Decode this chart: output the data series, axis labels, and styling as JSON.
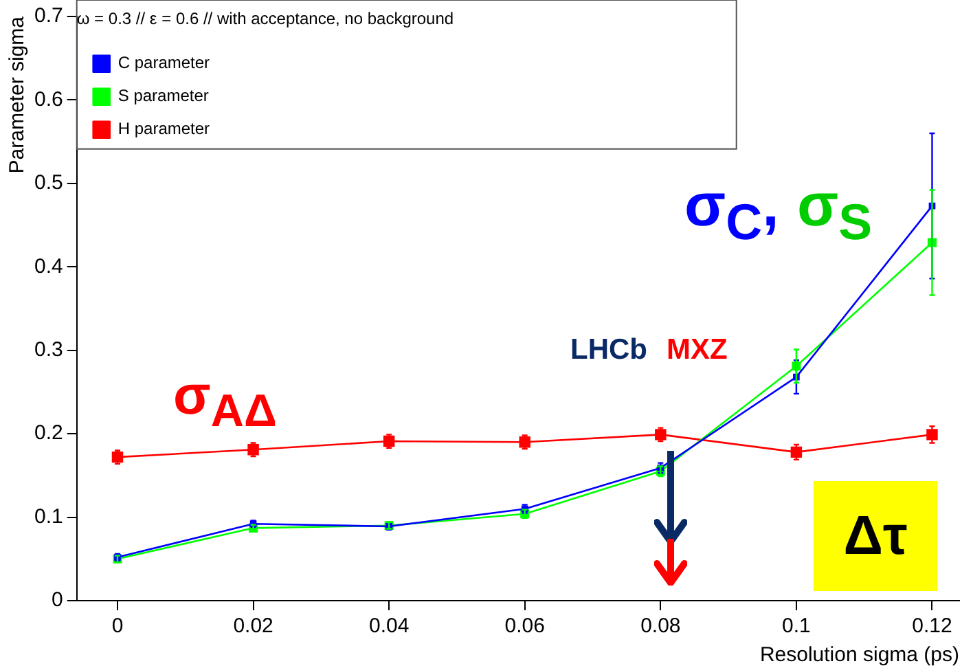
{
  "chart_data": {
    "type": "line",
    "xlabel": "Resolution sigma (ps)",
    "ylabel": "Parameter sigma",
    "legend_title": "ω = 0.3 // ε = 0.6 // with acceptance, no background",
    "x": [
      0,
      0.02,
      0.04,
      0.06,
      0.08,
      0.1,
      0.12
    ],
    "series": [
      {
        "name": "C parameter",
        "color": "#0000ff",
        "values": [
          0.052,
          0.092,
          0.089,
          0.11,
          0.159,
          0.268,
          0.473
        ],
        "errors": [
          0.004,
          0.004,
          0.004,
          0.005,
          0.006,
          0.02,
          0.087
        ]
      },
      {
        "name": "S parameter",
        "color": "#00ff00",
        "values": [
          0.05,
          0.087,
          0.09,
          0.104,
          0.155,
          0.281,
          0.429
        ],
        "errors": [
          0.004,
          0.004,
          0.004,
          0.005,
          0.006,
          0.02,
          0.063
        ]
      },
      {
        "name": "H parameter",
        "color": "#ff0000",
        "values": [
          0.172,
          0.181,
          0.191,
          0.19,
          0.199,
          0.178,
          0.199
        ],
        "errors": [
          0.008,
          0.008,
          0.008,
          0.008,
          0.008,
          0.009,
          0.01
        ]
      }
    ],
    "xlim": [
      -0.006,
      0.124
    ],
    "xticks": [
      0,
      0.02,
      0.04,
      0.06,
      0.08,
      0.1,
      0.12
    ],
    "ylim": [
      0,
      0.7
    ],
    "yticks": [
      0,
      0.1,
      0.2,
      0.3,
      0.4,
      0.5,
      0.6,
      0.7
    ],
    "grid": false,
    "legend": "top left",
    "marker": "square",
    "line_style": "solid",
    "annotations": [
      "σ$_{C}$,",
      "σ$_{S}$",
      "σ$_{AΔ}$",
      "LHCb",
      "MXZ",
      "Δτ"
    ]
  }
}
